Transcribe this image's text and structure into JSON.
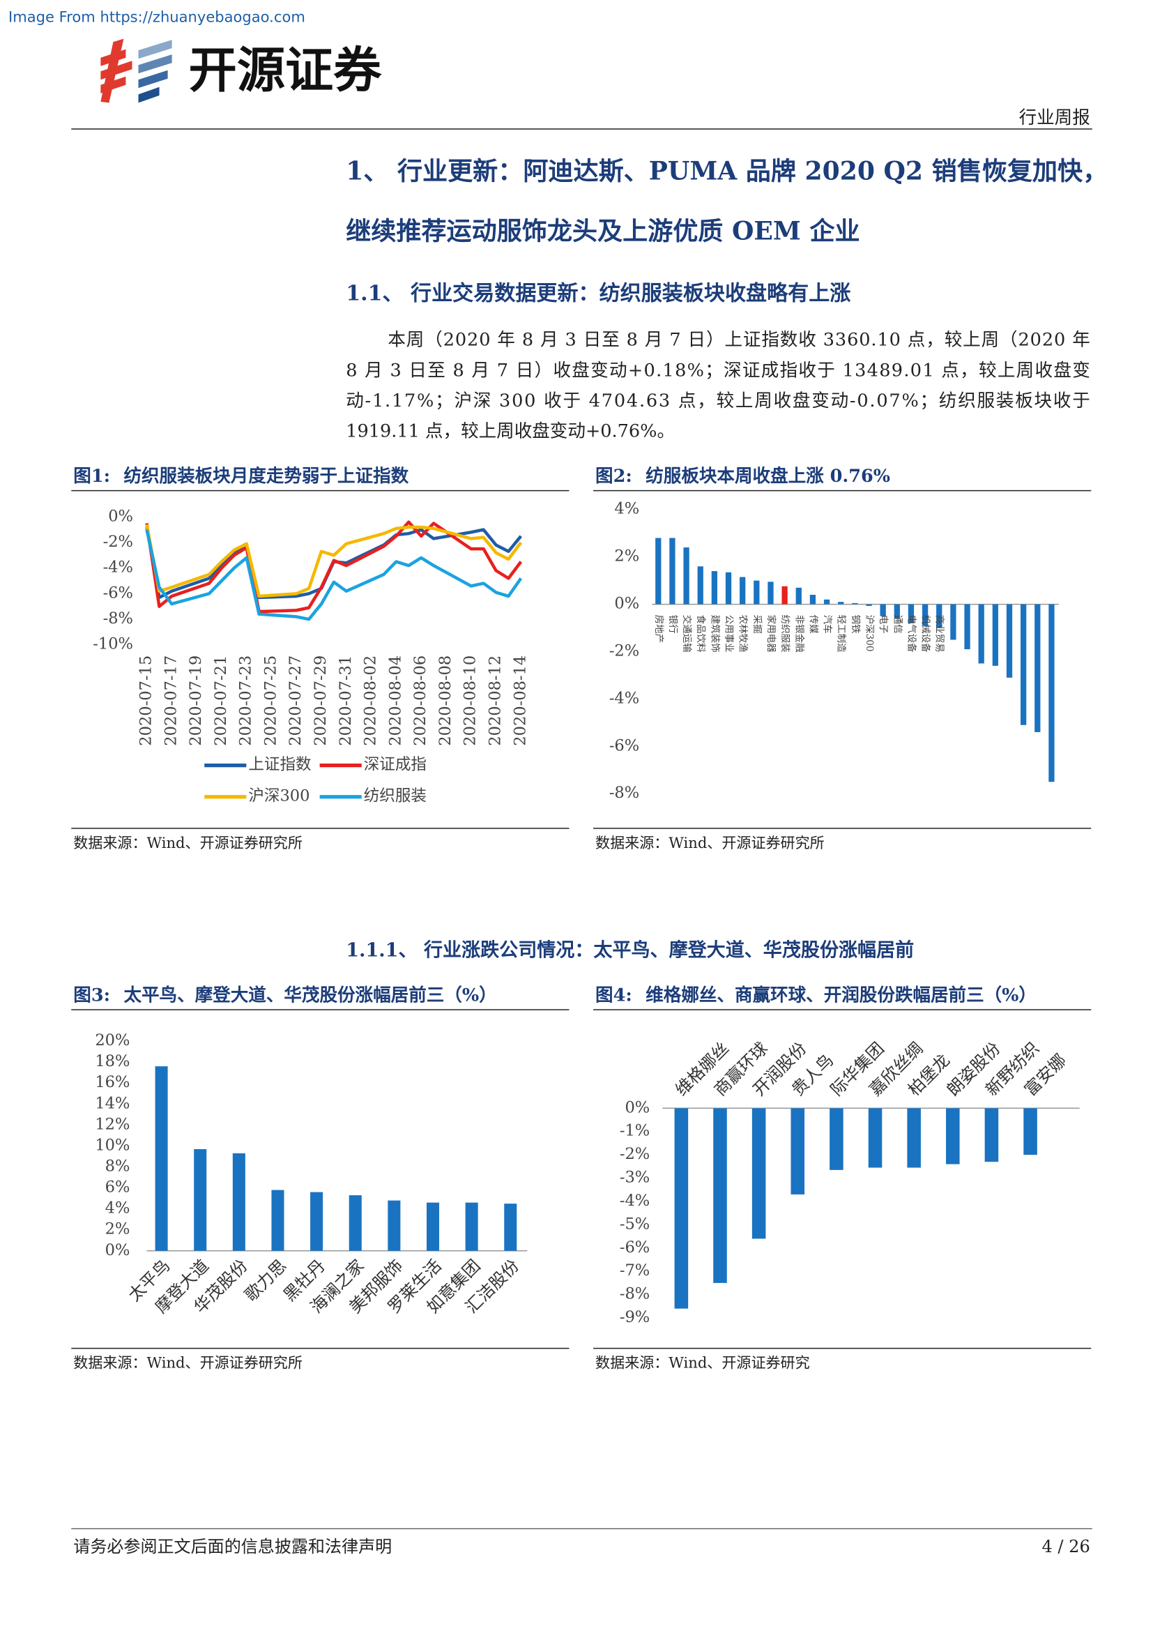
{
  "header": {
    "watermark": "Image From https://zhuanyebaogao.com",
    "brand": "开源证券",
    "tag": "行业周报"
  },
  "heading_lines": [
    "1、 行业更新：阿迪达斯、PUMA 品牌 2020 Q2 销售恢复加快，",
    "继续推荐运动服饰龙头及上游优质 OEM 企业"
  ],
  "subheading": "1.1、 行业交易数据更新：纺织服装板块收盘略有上涨",
  "paragraph_lines": [
    "本周（2020 年 8 月 3 日至 8 月 7 日）上证指数收 3360.10 点，较上周（2020 年",
    "8 月 3 日至 8 月 7 日）收盘变动+0.18%；深证成指收于 13489.01 点，较上周收盘变",
    "动-1.17%；沪深 300 收于 4704.63 点，较上周收盘变动-0.07%；纺织服装板块收于",
    "1919.11 点，较上周收盘变动+0.76%。"
  ],
  "subsubheading": "1.1.1、 行业涨跌公司情况：太平鸟、摩登大道、华茂股份涨幅居前",
  "chart_data": [
    {
      "type": "line",
      "label": "图1:",
      "title": "纺织服装板块月度走势弱于上证指数",
      "x": [
        "2020-07-15",
        "2020-07-16",
        "2020-07-17",
        "2020-07-20",
        "2020-07-21",
        "2020-07-22",
        "2020-07-23",
        "2020-07-24",
        "2020-07-27",
        "2020-07-28",
        "2020-07-29",
        "2020-07-30",
        "2020-07-31",
        "2020-08-03",
        "2020-08-04",
        "2020-08-05",
        "2020-08-06",
        "2020-08-07",
        "2020-08-10",
        "2020-08-11",
        "2020-08-12",
        "2020-08-13",
        "2020-08-14"
      ],
      "xticks": [
        "2020-07-15",
        "2020-07-17",
        "2020-07-19",
        "2020-07-21",
        "2020-07-23",
        "2020-07-25",
        "2020-07-27",
        "2020-07-29",
        "2020-07-31",
        "2020-08-02",
        "2020-08-04",
        "2020-08-06",
        "2020-08-08",
        "2020-08-10",
        "2020-08-12",
        "2020-08-14"
      ],
      "ylim": [
        -10,
        0
      ],
      "yticks": [
        {
          "value": 0,
          "label": "0%"
        },
        {
          "value": -2,
          "label": "-2%"
        },
        {
          "value": -4,
          "label": "-4%"
        },
        {
          "value": -6,
          "label": "-6%"
        },
        {
          "value": -8,
          "label": "-8%"
        },
        {
          "value": -10,
          "label": "-10%"
        }
      ],
      "series": [
        {
          "name": "上证指数",
          "color": "#1f5ca5",
          "values": [
            -0.8,
            -6.3,
            -5.8,
            -4.8,
            -3.8,
            -2.8,
            -2.4,
            -6.3,
            -6.2,
            -6.0,
            -5.6,
            -3.5,
            -3.6,
            -2.2,
            -1.4,
            -1.3,
            -1.0,
            -1.7,
            -1.2,
            -1.0,
            -2.2,
            -2.7,
            -1.5
          ]
        },
        {
          "name": "深证成指",
          "color": "#e8201e",
          "values": [
            -0.5,
            -7.0,
            -6.2,
            -5.2,
            -4.0,
            -3.0,
            -2.4,
            -7.4,
            -7.3,
            -7.1,
            -5.5,
            -3.4,
            -3.8,
            -2.3,
            -1.5,
            -0.4,
            -1.5,
            -0.5,
            -2.5,
            -2.5,
            -4.2,
            -4.8,
            -3.5
          ]
        },
        {
          "name": "沪深300",
          "color": "#f5b800",
          "values": [
            -0.6,
            -5.8,
            -5.5,
            -4.5,
            -3.5,
            -2.6,
            -2.1,
            -6.2,
            -6.0,
            -5.6,
            -2.7,
            -3.0,
            -2.1,
            -1.3,
            -0.9,
            -0.8,
            -0.8,
            -0.9,
            -1.7,
            -1.6,
            -2.8,
            -3.3,
            -2.0
          ]
        },
        {
          "name": "纺织服装",
          "color": "#1aa3e0",
          "values": [
            -1.0,
            -5.5,
            -6.8,
            -6.0,
            -5.0,
            -4.0,
            -3.2,
            -7.6,
            -7.8,
            -8.0,
            -6.8,
            -5.1,
            -5.8,
            -4.5,
            -3.5,
            -3.8,
            -3.2,
            -3.8,
            -5.4,
            -5.2,
            -5.9,
            -6.2,
            -4.8
          ]
        }
      ],
      "legend": "bottom",
      "source": "数据来源：Wind、开源证券研究所"
    },
    {
      "type": "bar",
      "label": "图2:",
      "title": "纺服板块本周收盘上涨 0.76%",
      "categories": [
        "房地产",
        "银行",
        "交通运输",
        "食品饮料",
        "建筑装饰",
        "公用事业",
        "农林牧渔",
        "采掘",
        "家用电器",
        "纺织服装",
        "非银金融",
        "传媒",
        "汽车",
        "轻工制造",
        "钢铁",
        "沪深300",
        "电子",
        "通信",
        "电气设备",
        "机械设备",
        "商业贸易",
        null,
        null,
        null,
        null,
        null,
        null,
        null,
        null
      ],
      "values": [
        2.8,
        2.8,
        2.4,
        1.6,
        1.4,
        1.35,
        1.15,
        1.0,
        0.95,
        0.76,
        0.7,
        0.4,
        0.2,
        0.1,
        0.05,
        -0.07,
        -0.5,
        -0.6,
        -0.8,
        -0.9,
        -1.0,
        -1.5,
        -1.9,
        -2.5,
        -2.6,
        -3.1,
        -5.1,
        -5.4,
        -7.5
      ],
      "colors": [
        "#1a73c1",
        "#1a73c1",
        "#1a73c1",
        "#1a73c1",
        "#1a73c1",
        "#1a73c1",
        "#1a73c1",
        "#1a73c1",
        "#1a73c1",
        "#e8201e",
        "#1a73c1",
        "#1a73c1",
        "#1a73c1",
        "#1a73c1",
        "#1a73c1",
        "#1a73c1",
        "#1a73c1",
        "#1a73c1",
        "#1a73c1",
        "#1a73c1",
        "#1a73c1",
        "#1a73c1",
        "#1a73c1",
        "#1a73c1",
        "#1a73c1",
        "#1a73c1",
        "#1a73c1",
        "#1a73c1",
        "#1a73c1"
      ],
      "ylim": [
        -8,
        4
      ],
      "yticks": [
        {
          "value": 4,
          "label": "4%"
        },
        {
          "value": 2,
          "label": "2%"
        },
        {
          "value": 0,
          "label": "0%"
        },
        {
          "value": -2,
          "label": "-2%"
        },
        {
          "value": -4,
          "label": "-4%"
        },
        {
          "value": -6,
          "label": "-6%"
        },
        {
          "value": -8,
          "label": "-8%"
        }
      ],
      "source": "数据来源：Wind、开源证券研究所"
    },
    {
      "type": "bar",
      "label": "图3:",
      "title": "太平鸟、摩登大道、华茂股份涨幅居前三（%）",
      "categories": [
        "太平鸟",
        "摩登大道",
        "华茂股份",
        "歌力思",
        "黑牡丹",
        "海澜之家",
        "美邦服饰",
        "罗莱生活",
        "如意集团",
        "汇洁股份"
      ],
      "values": [
        17.6,
        9.7,
        9.3,
        5.8,
        5.6,
        5.3,
        4.8,
        4.6,
        4.6,
        4.5
      ],
      "color": "#1a73c1",
      "ylim": [
        0,
        20
      ],
      "yticks": [
        {
          "value": 20,
          "label": "20%"
        },
        {
          "value": 18,
          "label": "18%"
        },
        {
          "value": 16,
          "label": "16%"
        },
        {
          "value": 14,
          "label": "14%"
        },
        {
          "value": 12,
          "label": "12%"
        },
        {
          "value": 10,
          "label": "10%"
        },
        {
          "value": 8,
          "label": "8%"
        },
        {
          "value": 6,
          "label": "6%"
        },
        {
          "value": 4,
          "label": "4%"
        },
        {
          "value": 2,
          "label": "2%"
        },
        {
          "value": 0,
          "label": "0%"
        }
      ],
      "source": "数据来源：Wind、开源证券研究所"
    },
    {
      "type": "bar",
      "label": "图4:",
      "title": "维格娜丝、商赢环球、开润股份跌幅居前三（%）",
      "categories": [
        "维格娜丝",
        "商赢环球",
        "开润股份",
        "贵人鸟",
        "际华集团",
        "嘉欣丝绸",
        "柏堡龙",
        "朗姿股份",
        "新野纺织",
        "富安娜"
      ],
      "values": [
        -8.6,
        -7.5,
        -5.6,
        -3.7,
        -2.65,
        -2.55,
        -2.55,
        -2.4,
        -2.3,
        -2.0
      ],
      "color": "#1a73c1",
      "ylim": [
        -9,
        0
      ],
      "yticks": [
        {
          "value": 0,
          "label": "0%"
        },
        {
          "value": -1,
          "label": "-1%"
        },
        {
          "value": -2,
          "label": "-2%"
        },
        {
          "value": -3,
          "label": "-3%"
        },
        {
          "value": -4,
          "label": "-4%"
        },
        {
          "value": -5,
          "label": "-5%"
        },
        {
          "value": -6,
          "label": "-6%"
        },
        {
          "value": -7,
          "label": "-7%"
        },
        {
          "value": -8,
          "label": "-8%"
        },
        {
          "value": -9,
          "label": "-9%"
        }
      ],
      "source": "数据来源：Wind、开源证券研究"
    }
  ],
  "footer": {
    "disclaimer": "请务必参阅正文后面的信息披露和法律声明",
    "page": "4 / 26"
  }
}
